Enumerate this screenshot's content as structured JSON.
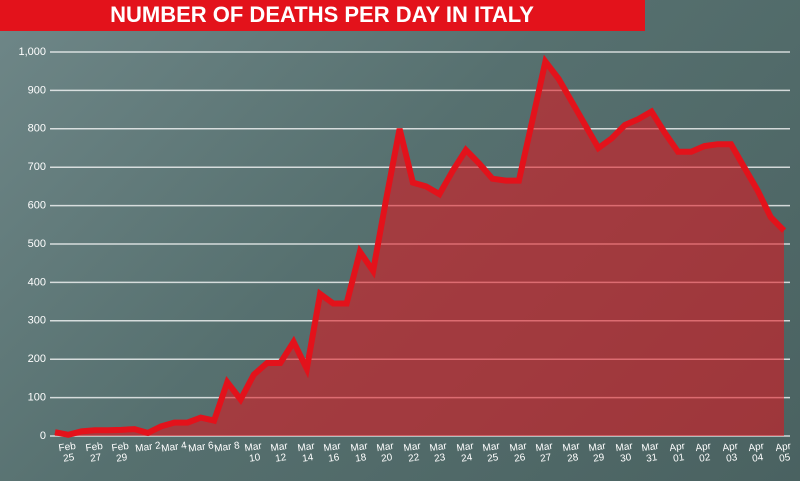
{
  "chart_data": {
    "type": "line",
    "title": "NUMBER OF DEATHS PER DAY IN ITALY",
    "categories": [
      null,
      "Feb 25",
      null,
      "Feb 27",
      null,
      "Feb 29",
      null,
      "Mar 2",
      null,
      "Mar 4",
      null,
      "Mar 6",
      null,
      "Mar 8",
      null,
      "Mar 10",
      null,
      "Mar 12",
      null,
      "Mar 14",
      null,
      "Mar 16",
      null,
      "Mar 18",
      null,
      "Mar 20",
      null,
      "Mar 22",
      null,
      "Mar 23",
      null,
      "Mar 24",
      null,
      "Mar 25",
      null,
      "Mar 26",
      null,
      "Mar 27",
      null,
      "Mar 28",
      null,
      "Mar 29",
      null,
      "Mar 30",
      null,
      "Mar 31",
      null,
      "Apr 01",
      null,
      "Apr 02",
      null,
      "Apr 03",
      null,
      "Apr 04",
      null,
      "Apr 05"
    ],
    "values": [
      10,
      3,
      12,
      15,
      15,
      16,
      18,
      8,
      25,
      35,
      35,
      48,
      40,
      140,
      95,
      160,
      190,
      190,
      245,
      175,
      370,
      345,
      345,
      480,
      430,
      620,
      800,
      660,
      650,
      630,
      690,
      745,
      710,
      670,
      665,
      665,
      820,
      975,
      930,
      870,
      810,
      750,
      775,
      810,
      825,
      845,
      790,
      740,
      740,
      755,
      760,
      760,
      700,
      640,
      570,
      535
    ],
    "color": "#e3121b",
    "ylim": [
      0,
      1000
    ],
    "yticks": [
      0,
      100,
      200,
      300,
      400,
      500,
      600,
      700,
      800,
      900,
      {
        "value": 1000,
        "label": "1,000"
      }
    ],
    "grid": true
  }
}
